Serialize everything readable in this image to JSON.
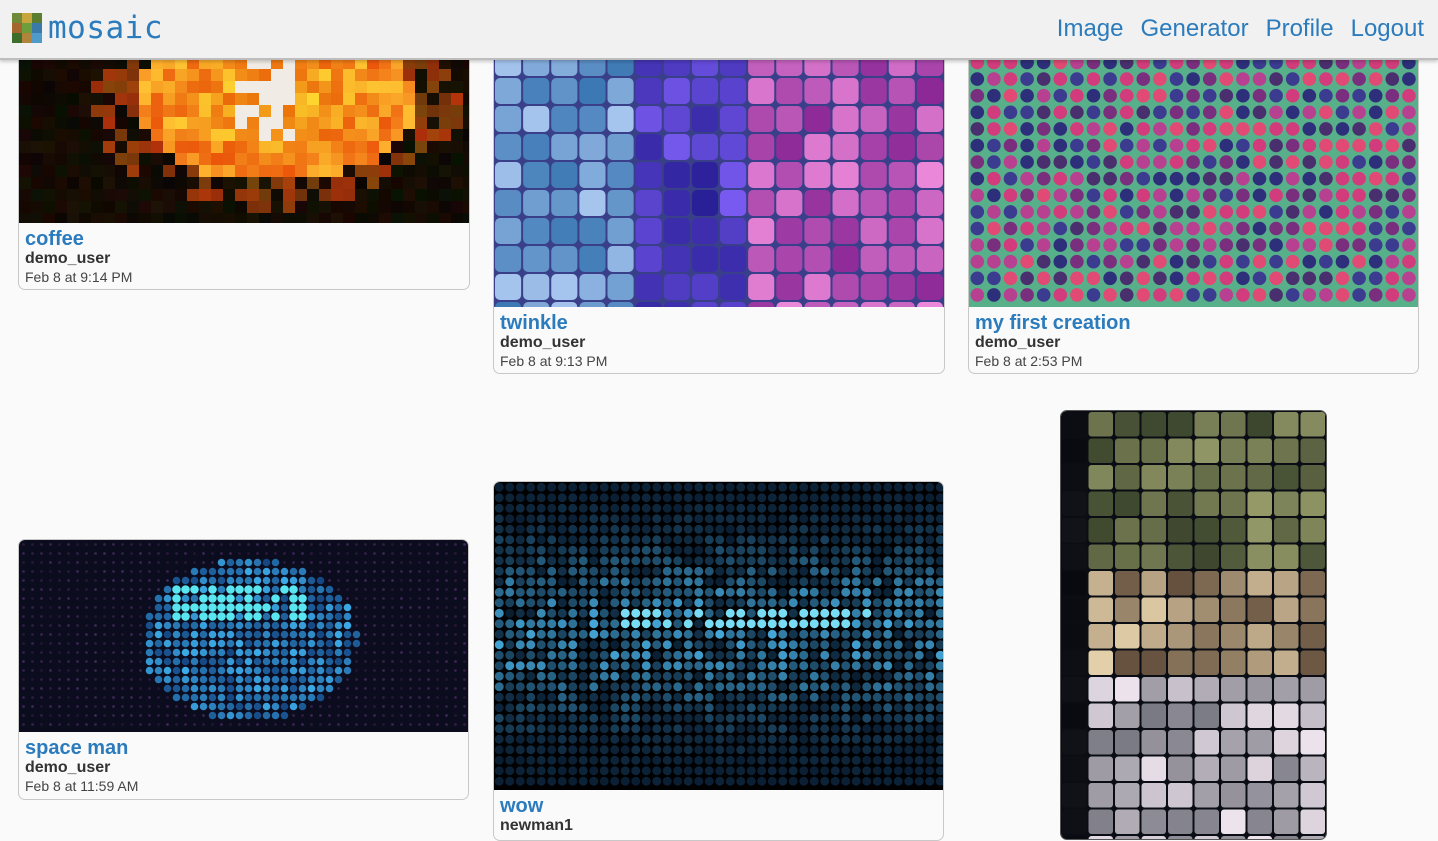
{
  "app": {
    "name": "mosaic"
  },
  "nav": {
    "items": [
      {
        "label": "Image"
      },
      {
        "label": "Generator"
      },
      {
        "label": "Profile"
      },
      {
        "label": "Logout"
      }
    ]
  },
  "gallery": {
    "cards": [
      {
        "title": "coffee",
        "user": "demo_user",
        "date": "Feb 8 at 9:14 PM"
      },
      {
        "title": "twinkle",
        "user": "demo_user",
        "date": "Feb 8 at 9:13 PM"
      },
      {
        "title": "my first creation",
        "user": "demo_user",
        "date": "Feb 8 at 2:53 PM"
      },
      {
        "title": "space man",
        "user": "demo_user",
        "date": "Feb 8 at 11:59 AM"
      },
      {
        "title": "wow",
        "user": "newman1",
        "date": ""
      },
      {
        "title": "",
        "user": "",
        "date": ""
      }
    ]
  },
  "colors": {
    "accent": "#2b7bbd",
    "background": "#fafafa",
    "topbar": "#f1f1f1"
  }
}
